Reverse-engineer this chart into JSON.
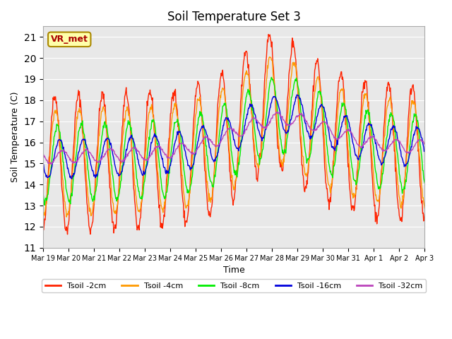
{
  "title": "Soil Temperature Set 3",
  "xlabel": "Time",
  "ylabel": "Soil Temperature (C)",
  "ylim": [
    11.0,
    21.5
  ],
  "yticks": [
    11.0,
    12.0,
    13.0,
    14.0,
    15.0,
    16.0,
    17.0,
    18.0,
    19.0,
    20.0,
    21.0
  ],
  "xtick_labels": [
    "Mar 19",
    "Mar 20",
    "Mar 21",
    "Mar 22",
    "Mar 23",
    "Mar 24",
    "Mar 25",
    "Mar 26",
    "Mar 27",
    "Mar 28",
    "Mar 29",
    "Mar 30",
    "Mar 31",
    "Apr 1",
    "Apr 2",
    "Apr 3"
  ],
  "series_colors": [
    "#ff2200",
    "#ff9900",
    "#00ee00",
    "#0000dd",
    "#bb44bb"
  ],
  "series_labels": [
    "Tsoil -2cm",
    "Tsoil -4cm",
    "Tsoil -8cm",
    "Tsoil -16cm",
    "Tsoil -32cm"
  ],
  "bg_color": "#e8e8e8",
  "annotation_text": "VR_met",
  "annotation_bg": "#ffffaa",
  "annotation_border": "#aa8800"
}
